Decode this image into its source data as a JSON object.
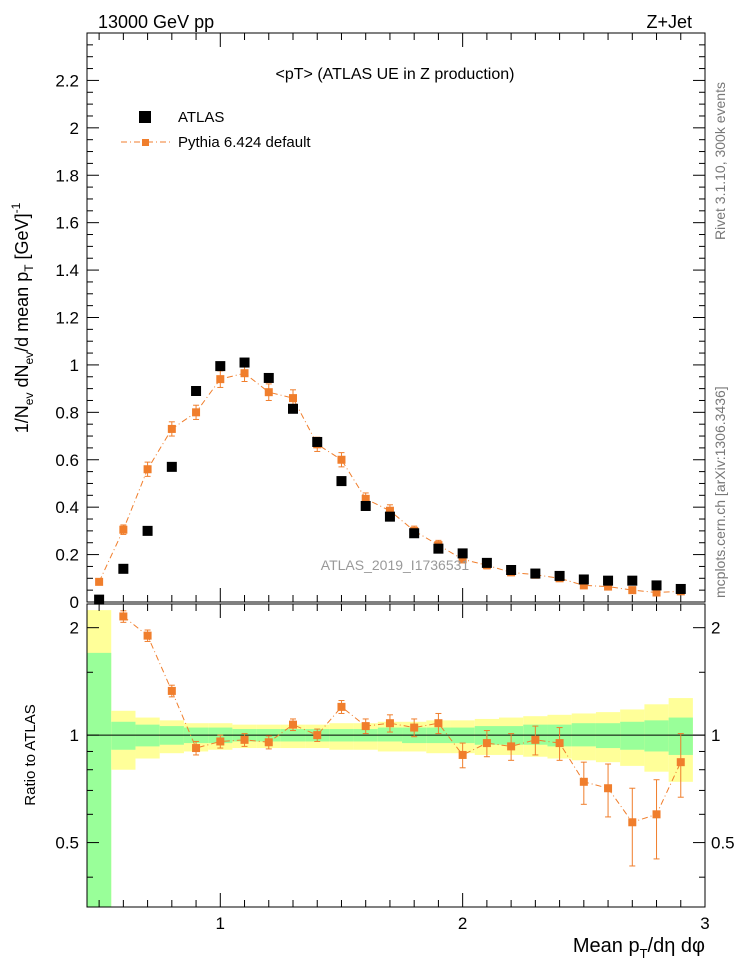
{
  "header": {
    "left": "13000 GeV pp",
    "right": "Z+Jet"
  },
  "side_labels": {
    "rivet": "Rivet 3.1.10,  300k events",
    "mcplots": "mcplots.cern.ch [arXiv:1306.3436]"
  },
  "chart_data": [
    {
      "type": "scatter",
      "title": "<pT>  (ATLAS UE in Z production)",
      "ylabel": "1/N_ev dN_ev/d mean p_T [GeV]^-1",
      "watermark": "ATLAS_2019_I1736531",
      "xlim": [
        0.45,
        3.0
      ],
      "ylim": [
        0,
        2.4
      ],
      "yticks": [
        0,
        0.2,
        0.4,
        0.6,
        0.8,
        1,
        1.2,
        1.4,
        1.6,
        1.8,
        2,
        2.2
      ],
      "ytick_labels": [
        "0",
        "0.2",
        "0.4",
        "0.6",
        "0.8",
        "1",
        "1.2",
        "1.4",
        "1.6",
        "1.8",
        "2",
        "2.2"
      ],
      "legend": {
        "position": "top-left"
      },
      "series": [
        {
          "name": "ATLAS",
          "style": "markers",
          "color": "#000000",
          "x": [
            0.5,
            0.6,
            0.7,
            0.8,
            0.9,
            1.0,
            1.1,
            1.2,
            1.3,
            1.4,
            1.5,
            1.6,
            1.7,
            1.8,
            1.9,
            2.0,
            2.1,
            2.2,
            2.3,
            2.4,
            2.5,
            2.6,
            2.7,
            2.8,
            2.9
          ],
          "y": [
            0.01,
            0.14,
            0.3,
            0.57,
            0.89,
            0.995,
            1.01,
            0.945,
            0.815,
            0.675,
            0.51,
            0.405,
            0.36,
            0.29,
            0.225,
            0.205,
            0.165,
            0.135,
            0.12,
            0.11,
            0.095,
            0.09,
            0.09,
            0.07,
            0.055
          ],
          "yerr": [
            0,
            0,
            0,
            0,
            0,
            0,
            0,
            0,
            0,
            0,
            0,
            0,
            0,
            0,
            0,
            0,
            0,
            0,
            0,
            0,
            0,
            0,
            0,
            0,
            0
          ]
        },
        {
          "name": "Pythia 6.424 default",
          "style": "markers+dashdot",
          "color": "#f07e2c",
          "x": [
            0.5,
            0.6,
            0.7,
            0.8,
            0.9,
            1.0,
            1.1,
            1.2,
            1.3,
            1.4,
            1.5,
            1.6,
            1.7,
            1.8,
            1.9,
            2.0,
            2.1,
            2.2,
            2.3,
            2.4,
            2.5,
            2.6,
            2.7,
            2.8,
            2.9
          ],
          "y": [
            0.085,
            0.305,
            0.56,
            0.73,
            0.8,
            0.94,
            0.965,
            0.885,
            0.86,
            0.665,
            0.6,
            0.435,
            0.385,
            0.3,
            0.24,
            0.18,
            0.155,
            0.125,
            0.115,
            0.1,
            0.07,
            0.065,
            0.05,
            0.04,
            0.045
          ],
          "yerr": [
            0.01,
            0.02,
            0.03,
            0.03,
            0.03,
            0.035,
            0.035,
            0.035,
            0.035,
            0.03,
            0.03,
            0.025,
            0.025,
            0.02,
            0.02,
            0.015,
            0.015,
            0.012,
            0.012,
            0.012,
            0.01,
            0.01,
            0.008,
            0.008,
            0.008
          ]
        }
      ]
    },
    {
      "type": "scatter",
      "ylabel": "Ratio to ATLAS",
      "xlabel": "Mean p_T/dη dφ",
      "xlim": [
        0.45,
        3.0
      ],
      "ylim": [
        0.33,
        2.33
      ],
      "xticks": [
        1,
        2,
        3
      ],
      "xtick_labels": [
        "1",
        "2",
        "3"
      ],
      "yticks": [
        0.5,
        1,
        2
      ],
      "ytick_labels": [
        "0.5",
        "1",
        "2"
      ],
      "reference_line": 1,
      "bands": {
        "bin_edges": [
          0.45,
          0.55,
          0.65,
          0.75,
          0.85,
          0.95,
          1.05,
          1.15,
          1.25,
          1.35,
          1.45,
          1.55,
          1.65,
          1.75,
          1.85,
          1.95,
          2.05,
          2.15,
          2.25,
          2.35,
          2.45,
          2.55,
          2.65,
          2.75,
          2.85,
          2.95
        ],
        "outer_color": "#ffff99",
        "inner_color": "#99ff99",
        "outer_lo": [
          0.0,
          0.8,
          0.86,
          0.89,
          0.9,
          0.91,
          0.92,
          0.92,
          0.92,
          0.92,
          0.91,
          0.91,
          0.9,
          0.9,
          0.89,
          0.89,
          0.88,
          0.88,
          0.87,
          0.86,
          0.85,
          0.84,
          0.82,
          0.79,
          0.74
        ],
        "outer_hi": [
          2.24,
          1.17,
          1.12,
          1.1,
          1.08,
          1.08,
          1.07,
          1.07,
          1.07,
          1.07,
          1.08,
          1.08,
          1.09,
          1.09,
          1.1,
          1.1,
          1.11,
          1.12,
          1.13,
          1.14,
          1.15,
          1.16,
          1.18,
          1.22,
          1.27
        ],
        "inner_lo": [
          0.0,
          0.91,
          0.93,
          0.94,
          0.95,
          0.95,
          0.96,
          0.96,
          0.96,
          0.96,
          0.96,
          0.96,
          0.96,
          0.95,
          0.95,
          0.95,
          0.94,
          0.94,
          0.94,
          0.93,
          0.93,
          0.92,
          0.91,
          0.9,
          0.88
        ],
        "inner_hi": [
          1.7,
          1.09,
          1.07,
          1.06,
          1.05,
          1.05,
          1.04,
          1.04,
          1.04,
          1.04,
          1.04,
          1.04,
          1.05,
          1.05,
          1.05,
          1.05,
          1.06,
          1.06,
          1.07,
          1.07,
          1.08,
          1.08,
          1.09,
          1.1,
          1.12
        ]
      },
      "series": [
        {
          "name": "Pythia 6.424 default",
          "style": "markers+dashdot",
          "color": "#f07e2c",
          "x": [
            0.6,
            0.7,
            0.8,
            0.9,
            1.0,
            1.1,
            1.2,
            1.3,
            1.4,
            1.5,
            1.6,
            1.7,
            1.8,
            1.9,
            2.0,
            2.1,
            2.2,
            2.3,
            2.4,
            2.5,
            2.6,
            2.7,
            2.8,
            2.9
          ],
          "y": [
            2.15,
            1.9,
            1.33,
            0.92,
            0.96,
            0.97,
            0.955,
            1.07,
            1.0,
            1.2,
            1.06,
            1.08,
            1.05,
            1.08,
            0.88,
            0.95,
            0.93,
            0.97,
            0.95,
            0.74,
            0.71,
            0.57,
            0.6,
            0.84
          ],
          "yerr": [
            0.08,
            0.07,
            0.05,
            0.04,
            0.04,
            0.04,
            0.04,
            0.04,
            0.04,
            0.05,
            0.05,
            0.06,
            0.06,
            0.07,
            0.07,
            0.08,
            0.08,
            0.09,
            0.1,
            0.1,
            0.12,
            0.14,
            0.15,
            0.17
          ]
        }
      ]
    }
  ]
}
